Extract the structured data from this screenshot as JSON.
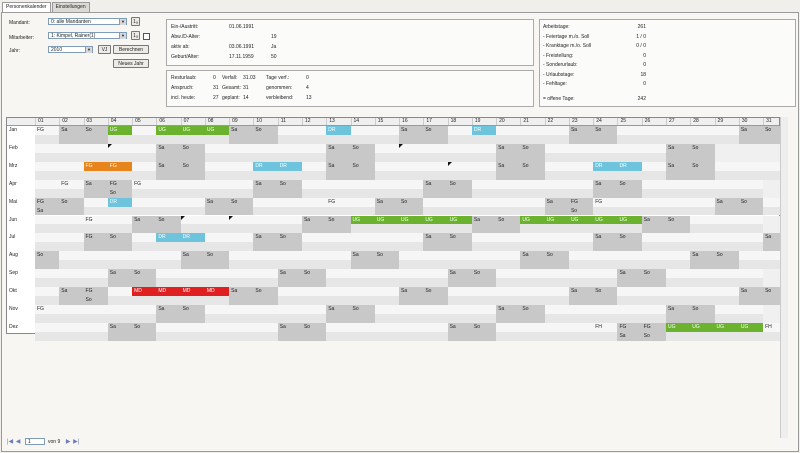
{
  "tabs": [
    "Personenkalender",
    "Einstellungen"
  ],
  "form": {
    "mandant_label": "Mandant:",
    "mandant_value": "0: alle Mandanten",
    "mitarbeiter_label": "Mitarbeiter:",
    "mitarbeiter_value": "1: Kimpel, Rainer(1)",
    "jahr_label": "Jahr:",
    "jahr_value": "2010",
    "vj_label": "VJ",
    "berechnen_label": "Berechnen",
    "neues_jahr_label": "Neues Jahr",
    "small_btn_label": "1ₐ"
  },
  "info_panel": [
    {
      "label": "Ein-/Austritt:",
      "value": "01.06.1991"
    },
    {
      "label": "Abw./D-Alter:",
      "value": "19"
    },
    {
      "label": "aktiv ab:",
      "value": "03.06.1991",
      "extra": "Ja"
    },
    {
      "label": "Geburt/Alter:",
      "value": "17.11.1959",
      "extra": "50"
    }
  ],
  "leave_panel": {
    "rows": [
      [
        "Resturlaub:",
        "0",
        "Verfall:",
        "31.03",
        "Tage verf.:",
        "0"
      ],
      [
        "Anspruch:",
        "31",
        "Gesamt:",
        "31",
        "genommen:",
        "4"
      ],
      [
        "incl. heute:",
        "27",
        "geplant:",
        "14",
        "verbleibend:",
        "13"
      ]
    ]
  },
  "stats_panel": [
    {
      "label": "Arbeitstage:",
      "value": "261"
    },
    {
      "label": "- Feiertage m./o. Soll",
      "value": "1 / 0"
    },
    {
      "label": "- Kranktage m./o. Soll",
      "value": "0 / 0"
    },
    {
      "label": "- Freistellung:",
      "value": "0"
    },
    {
      "label": "- Sonderurlaub:",
      "value": "0"
    },
    {
      "label": "- Urlaubstage:",
      "value": "18"
    },
    {
      "label": "- Fehltage:",
      "value": "0"
    },
    {
      "label": "= offene Tage:",
      "value": "242"
    }
  ],
  "calendar": {
    "months": [
      "Jan",
      "Feb",
      "Mrz",
      "Apr",
      "Mai",
      "Jun",
      "Jul",
      "Aug",
      "Sep",
      "Okt",
      "Nov",
      "Dez"
    ],
    "days": [
      "01",
      "02",
      "03",
      "04",
      "05",
      "06",
      "07",
      "08",
      "09",
      "10",
      "11",
      "12",
      "13",
      "14",
      "15",
      "16",
      "17",
      "18",
      "19",
      "20",
      "21",
      "22",
      "23",
      "24",
      "25",
      "26",
      "27",
      "28",
      "29",
      "30",
      "31"
    ],
    "year": 2010,
    "entries": [
      {
        "m": 0,
        "d": 1,
        "t": "FG"
      },
      {
        "m": 0,
        "d": 4,
        "t": "UG",
        "c": "UG"
      },
      {
        "m": 0,
        "d": 6,
        "t": "UG",
        "c": "UG"
      },
      {
        "m": 0,
        "d": 7,
        "t": "UG",
        "c": "UG"
      },
      {
        "m": 0,
        "d": 8,
        "t": "UG",
        "c": "UG"
      },
      {
        "m": 0,
        "d": 13,
        "t": "DR",
        "c": "DR"
      },
      {
        "m": 0,
        "d": 19,
        "t": "DR",
        "c": "DR"
      },
      {
        "m": 2,
        "d": 3,
        "t": "FG",
        "c": "FG"
      },
      {
        "m": 2,
        "d": 4,
        "t": "FG",
        "c": "FG"
      },
      {
        "m": 2,
        "d": 10,
        "t": "DR",
        "c": "DR"
      },
      {
        "m": 2,
        "d": 11,
        "t": "DR",
        "c": "DR"
      },
      {
        "m": 2,
        "d": 24,
        "t": "DR",
        "c": "DR"
      },
      {
        "m": 2,
        "d": 25,
        "t": "DR",
        "c": "DR"
      },
      {
        "m": 3,
        "d": 2,
        "t": "FG"
      },
      {
        "m": 3,
        "d": 4,
        "t": "FG",
        "sub": "So"
      },
      {
        "m": 3,
        "d": 5,
        "t": "FG"
      },
      {
        "m": 4,
        "d": 1,
        "t": "FG",
        "sub": "Sa"
      },
      {
        "m": 4,
        "d": 4,
        "t": "DR",
        "c": "DR"
      },
      {
        "m": 4,
        "d": 13,
        "t": "FG"
      },
      {
        "m": 4,
        "d": 23,
        "t": "FG",
        "sub": "So"
      },
      {
        "m": 4,
        "d": 24,
        "t": "FG"
      },
      {
        "m": 5,
        "d": 3,
        "t": "FG"
      },
      {
        "m": 5,
        "d": 14,
        "t": "UG",
        "c": "UG"
      },
      {
        "m": 5,
        "d": 15,
        "t": "UG",
        "c": "UG"
      },
      {
        "m": 5,
        "d": 16,
        "t": "UG",
        "c": "UG"
      },
      {
        "m": 5,
        "d": 17,
        "t": "UG",
        "c": "UG"
      },
      {
        "m": 5,
        "d": 18,
        "t": "UG",
        "c": "UG"
      },
      {
        "m": 5,
        "d": 21,
        "t": "UG",
        "c": "UG"
      },
      {
        "m": 5,
        "d": 22,
        "t": "UG",
        "c": "UG"
      },
      {
        "m": 5,
        "d": 23,
        "t": "UG",
        "c": "UG"
      },
      {
        "m": 5,
        "d": 24,
        "t": "UG",
        "c": "UG"
      },
      {
        "m": 5,
        "d": 25,
        "t": "UG",
        "c": "UG"
      },
      {
        "m": 6,
        "d": 3,
        "t": "FG"
      },
      {
        "m": 6,
        "d": 6,
        "t": "DR",
        "c": "DR"
      },
      {
        "m": 6,
        "d": 7,
        "t": "DR",
        "c": "DR"
      },
      {
        "m": 9,
        "d": 3,
        "t": "FG",
        "sub": "So"
      },
      {
        "m": 9,
        "d": 5,
        "t": "MD",
        "c": "MD"
      },
      {
        "m": 9,
        "d": 6,
        "t": "MD",
        "c": "MD"
      },
      {
        "m": 9,
        "d": 7,
        "t": "MD",
        "c": "MD"
      },
      {
        "m": 9,
        "d": 8,
        "t": "MD",
        "c": "MD"
      },
      {
        "m": 10,
        "d": 1,
        "t": "FG"
      },
      {
        "m": 11,
        "d": 24,
        "t": "FH"
      },
      {
        "m": 11,
        "d": 25,
        "t": "FG",
        "sub": "Sa"
      },
      {
        "m": 11,
        "d": 26,
        "t": "FG",
        "sub": "So"
      },
      {
        "m": 11,
        "d": 27,
        "t": "UG",
        "c": "UG"
      },
      {
        "m": 11,
        "d": 28,
        "t": "UG",
        "c": "UG"
      },
      {
        "m": 11,
        "d": 29,
        "t": "UG",
        "c": "UG"
      },
      {
        "m": 11,
        "d": 30,
        "t": "UG",
        "c": "UG"
      },
      {
        "m": 11,
        "d": 31,
        "t": "FH"
      }
    ],
    "markers": [
      {
        "m": 1,
        "d": 4
      },
      {
        "m": 1,
        "d": 16
      },
      {
        "m": 2,
        "d": 18
      },
      {
        "m": 5,
        "d": 7
      },
      {
        "m": 5,
        "d": 9
      }
    ],
    "weekend_labels": {
      "sat": "Sa",
      "sun": "So"
    },
    "colors": {
      "UG": "#6bb32e",
      "DR": "#6ec4dc",
      "FG": "#e8841c",
      "MD": "#e02020",
      "weekend": "#c8c8c8",
      "altrow": "#e6e6e6",
      "norm": "#f6f6f6"
    }
  },
  "pager": {
    "page": "1",
    "of": "von 9"
  }
}
